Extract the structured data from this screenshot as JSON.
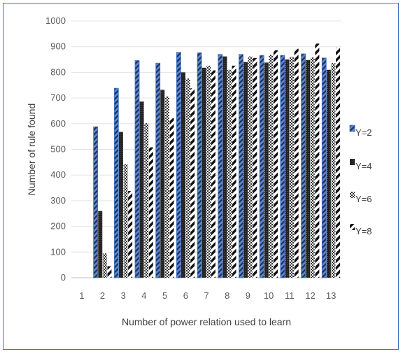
{
  "chart_data": {
    "type": "bar",
    "title": "",
    "xlabel": "Number of power relation used to learn",
    "ylabel": "Number of rule found",
    "categories": [
      "1",
      "2",
      "3",
      "4",
      "5",
      "6",
      "7",
      "8",
      "9",
      "10",
      "11",
      "12",
      "13"
    ],
    "ylim": [
      0,
      1000
    ],
    "yticks": [
      0,
      100,
      200,
      300,
      400,
      500,
      600,
      700,
      800,
      900,
      1000
    ],
    "grid": true,
    "legend_position": "right",
    "series": [
      {
        "name": "Y=2",
        "pattern": "stripe-blue",
        "values": [
          0,
          588,
          738,
          846,
          836,
          878,
          876,
          870,
          870,
          866,
          866,
          872,
          856
        ]
      },
      {
        "name": "Y=4",
        "pattern": "dense-dark",
        "values": [
          0,
          260,
          568,
          686,
          732,
          800,
          818,
          862,
          840,
          838,
          850,
          848,
          810
        ]
      },
      {
        "name": "Y=6",
        "pattern": "checker",
        "values": [
          0,
          95,
          442,
          602,
          706,
          776,
          826,
          810,
          862,
          868,
          860,
          858,
          836
        ]
      },
      {
        "name": "Y=8",
        "pattern": "wide-diagonal",
        "values": [
          0,
          45,
          338,
          508,
          622,
          738,
          808,
          826,
          856,
          886,
          892,
          912,
          896
        ]
      }
    ]
  }
}
